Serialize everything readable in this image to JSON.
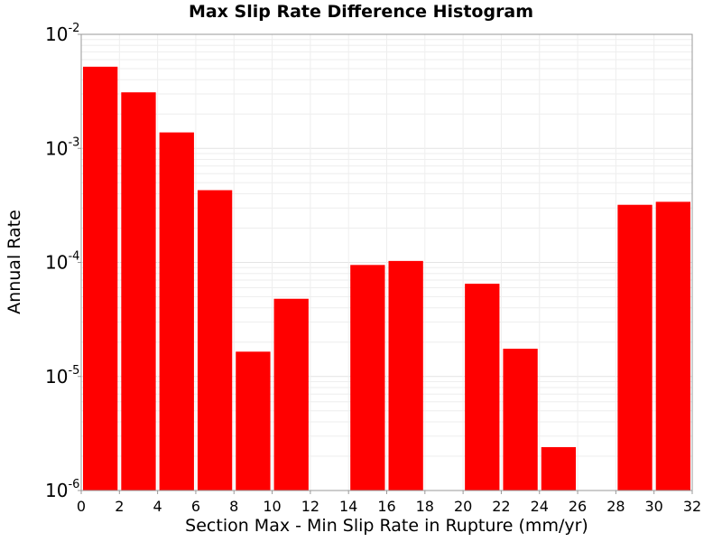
{
  "chart_data": {
    "type": "bar",
    "title": "Max Slip Rate Difference Histogram",
    "xlabel": "Section Max - Min Slip Rate in Rupture (mm/yr)",
    "ylabel": "Annual Rate",
    "xlim": [
      0,
      32
    ],
    "ylim": [
      1e-06,
      0.01
    ],
    "yscale": "log",
    "grid": true,
    "bar_color": "#ff0000",
    "bin_width": 2,
    "x_ticks": [
      "0",
      "2",
      "4",
      "6",
      "8",
      "10",
      "12",
      "14",
      "16",
      "18",
      "20",
      "22",
      "24",
      "26",
      "28",
      "30",
      "32"
    ],
    "y_ticks": [
      {
        "base": "10",
        "exp": "-6"
      },
      {
        "base": "10",
        "exp": "-5"
      },
      {
        "base": "10",
        "exp": "-4"
      },
      {
        "base": "10",
        "exp": "-3"
      },
      {
        "base": "10",
        "exp": "-2"
      }
    ],
    "bins": [
      {
        "x": 1,
        "value": 0.0052
      },
      {
        "x": 3,
        "value": 0.0031
      },
      {
        "x": 5,
        "value": 0.00138
      },
      {
        "x": 7,
        "value": 0.00043
      },
      {
        "x": 9,
        "value": 1.65e-05
      },
      {
        "x": 11,
        "value": 4.8e-05
      },
      {
        "x": 15,
        "value": 9.5e-05
      },
      {
        "x": 17,
        "value": 0.000103
      },
      {
        "x": 21,
        "value": 6.5e-05
      },
      {
        "x": 23,
        "value": 1.75e-05
      },
      {
        "x": 25,
        "value": 2.4e-06
      },
      {
        "x": 29,
        "value": 0.00032
      },
      {
        "x": 31,
        "value": 0.00034
      }
    ]
  }
}
